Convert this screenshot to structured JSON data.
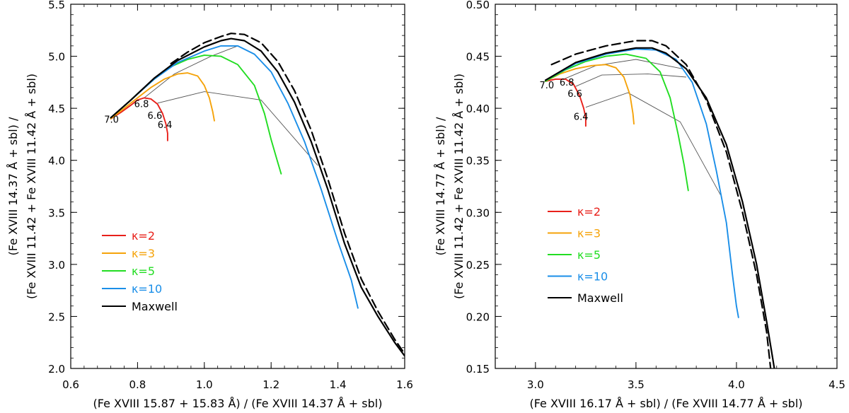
{
  "chart_data": [
    {
      "type": "line",
      "xlabel": "(Fe XVIII 15.87 + 15.83 Å) / (Fe XVIII 14.37 Å + sbl)",
      "ylabel_line1": "(Fe XVIII 14.37 Å + sbl) /",
      "ylabel_line2": "(Fe XVIII 11.42 + Fe XVIII 11.42 Å + sbl)",
      "xlim": [
        0.6,
        1.6
      ],
      "ylim": [
        2.0,
        5.5
      ],
      "xticks": [
        "0.6",
        "0.8",
        "1.0",
        "1.2",
        "1.4",
        "1.6"
      ],
      "yticks": [
        "2.0",
        "2.5",
        "3.0",
        "3.5",
        "4.0",
        "4.5",
        "5.0",
        "5.5"
      ],
      "legend_position": "lower-left",
      "legend": [
        {
          "label": "κ=2",
          "color": "#e8201a"
        },
        {
          "label": "κ=3",
          "color": "#f5a30a"
        },
        {
          "label": "κ=5",
          "color": "#22dd22"
        },
        {
          "label": "κ=10",
          "color": "#1a8ee8"
        },
        {
          "label": "Maxwell",
          "color": "#000000"
        }
      ],
      "series": [
        {
          "name": "κ=2",
          "color": "#e8201a",
          "style": "solid",
          "points": [
            [
              0.72,
              4.4
            ],
            [
              0.75,
              4.46
            ],
            [
              0.78,
              4.53
            ],
            [
              0.8,
              4.58
            ],
            [
              0.82,
              4.6
            ],
            [
              0.84,
              4.59
            ],
            [
              0.86,
              4.54
            ],
            [
              0.875,
              4.45
            ],
            [
              0.885,
              4.35
            ],
            [
              0.89,
              4.26
            ],
            [
              0.89,
              4.19
            ]
          ]
        },
        {
          "name": "κ=3",
          "color": "#f5a30a",
          "style": "solid",
          "points": [
            [
              0.72,
              4.4
            ],
            [
              0.76,
              4.5
            ],
            [
              0.8,
              4.6
            ],
            [
              0.84,
              4.7
            ],
            [
              0.88,
              4.78
            ],
            [
              0.92,
              4.83
            ],
            [
              0.95,
              4.84
            ],
            [
              0.98,
              4.81
            ],
            [
              1.0,
              4.72
            ],
            [
              1.015,
              4.6
            ],
            [
              1.025,
              4.47
            ],
            [
              1.03,
              4.38
            ]
          ]
        },
        {
          "name": "κ=5",
          "color": "#22dd22",
          "style": "solid",
          "points": [
            [
              0.72,
              4.41
            ],
            [
              0.76,
              4.52
            ],
            [
              0.8,
              4.64
            ],
            [
              0.85,
              4.78
            ],
            [
              0.9,
              4.9
            ],
            [
              0.95,
              4.97
            ],
            [
              1.0,
              5.01
            ],
            [
              1.05,
              5.0
            ],
            [
              1.1,
              4.92
            ],
            [
              1.15,
              4.72
            ],
            [
              1.18,
              4.45
            ],
            [
              1.2,
              4.2
            ],
            [
              1.22,
              3.98
            ],
            [
              1.23,
              3.87
            ]
          ]
        },
        {
          "name": "κ=10",
          "color": "#1a8ee8",
          "style": "solid",
          "points": [
            [
              0.72,
              4.41
            ],
            [
              0.78,
              4.58
            ],
            [
              0.85,
              4.78
            ],
            [
              0.92,
              4.94
            ],
            [
              1.0,
              5.05
            ],
            [
              1.05,
              5.1
            ],
            [
              1.1,
              5.1
            ],
            [
              1.15,
              5.02
            ],
            [
              1.2,
              4.85
            ],
            [
              1.25,
              4.55
            ],
            [
              1.3,
              4.18
            ],
            [
              1.35,
              3.72
            ],
            [
              1.4,
              3.22
            ],
            [
              1.44,
              2.85
            ],
            [
              1.46,
              2.58
            ]
          ]
        },
        {
          "name": "Maxwell",
          "color": "#000000",
          "style": "solid",
          "points": [
            [
              0.72,
              4.41
            ],
            [
              0.78,
              4.58
            ],
            [
              0.85,
              4.79
            ],
            [
              0.92,
              4.96
            ],
            [
              1.0,
              5.09
            ],
            [
              1.05,
              5.15
            ],
            [
              1.08,
              5.17
            ],
            [
              1.12,
              5.15
            ],
            [
              1.17,
              5.05
            ],
            [
              1.22,
              4.85
            ],
            [
              1.27,
              4.56
            ],
            [
              1.32,
              4.18
            ],
            [
              1.37,
              3.72
            ],
            [
              1.42,
              3.2
            ],
            [
              1.47,
              2.78
            ],
            [
              1.52,
              2.5
            ],
            [
              1.57,
              2.25
            ],
            [
              1.6,
              2.12
            ]
          ]
        },
        {
          "name": "Maxwell (dashed)",
          "color": "#000000",
          "style": "dashed",
          "points": [
            [
              0.9,
              4.93
            ],
            [
              0.95,
              5.04
            ],
            [
              1.0,
              5.13
            ],
            [
              1.05,
              5.19
            ],
            [
              1.08,
              5.22
            ],
            [
              1.12,
              5.21
            ],
            [
              1.17,
              5.13
            ],
            [
              1.22,
              4.95
            ],
            [
              1.27,
              4.67
            ],
            [
              1.32,
              4.29
            ],
            [
              1.37,
              3.82
            ],
            [
              1.42,
              3.3
            ],
            [
              1.47,
              2.86
            ],
            [
              1.52,
              2.55
            ],
            [
              1.57,
              2.28
            ],
            [
              1.6,
              2.14
            ]
          ]
        }
      ],
      "isotherm_lines": [
        [
          [
            0.82,
            4.6
          ],
          [
            0.91,
            4.83
          ],
          [
            1.02,
            5.0
          ],
          [
            1.1,
            5.1
          ]
        ],
        [
          [
            0.86,
            4.55
          ],
          [
            1.0,
            4.66
          ],
          [
            1.17,
            4.58
          ],
          [
            1.34,
            3.95
          ]
        ]
      ],
      "temperature_labels": [
        {
          "text": "7.0",
          "x": 0.7,
          "y": 4.36
        },
        {
          "text": "6.8",
          "x": 0.79,
          "y": 4.51
        },
        {
          "text": "6.6",
          "x": 0.83,
          "y": 4.4
        },
        {
          "text": "6.4",
          "x": 0.86,
          "y": 4.31
        }
      ]
    },
    {
      "type": "line",
      "xlabel": "(Fe XVIII 16.17 Å + sbl) / (Fe XVIII 14.77 Å + sbl)",
      "ylabel_line1": "(Fe XVIII 14.77 Å + sbl) /",
      "ylabel_line2": "(Fe XVIII 11.42 + Fe XVIII 11.42 Å + sbl)",
      "xlim": [
        2.8,
        4.5
      ],
      "ylim": [
        0.15,
        0.5
      ],
      "xticks": [
        "3.0",
        "3.5",
        "4.0",
        "4.5"
      ],
      "yticks": [
        "0.15",
        "0.20",
        "0.25",
        "0.30",
        "0.35",
        "0.40",
        "0.45",
        "0.50"
      ],
      "legend_position": "middle-left",
      "legend": [
        {
          "label": "κ=2",
          "color": "#e8201a"
        },
        {
          "label": "κ=3",
          "color": "#f5a30a"
        },
        {
          "label": "κ=5",
          "color": "#22dd22"
        },
        {
          "label": "κ=10",
          "color": "#1a8ee8"
        },
        {
          "label": "Maxwell",
          "color": "#000000"
        }
      ],
      "series": [
        {
          "name": "κ=2",
          "color": "#e8201a",
          "style": "solid",
          "points": [
            [
              3.05,
              0.426
            ],
            [
              3.1,
              0.428
            ],
            [
              3.15,
              0.428
            ],
            [
              3.19,
              0.423
            ],
            [
              3.22,
              0.412
            ],
            [
              3.24,
              0.4
            ],
            [
              3.25,
              0.391
            ],
            [
              3.25,
              0.383
            ]
          ]
        },
        {
          "name": "κ=3",
          "color": "#f5a30a",
          "style": "solid",
          "points": [
            [
              3.05,
              0.426
            ],
            [
              3.12,
              0.433
            ],
            [
              3.2,
              0.438
            ],
            [
              3.28,
              0.441
            ],
            [
              3.35,
              0.442
            ],
            [
              3.4,
              0.439
            ],
            [
              3.44,
              0.43
            ],
            [
              3.47,
              0.413
            ],
            [
              3.485,
              0.395
            ],
            [
              3.49,
              0.385
            ]
          ]
        },
        {
          "name": "κ=5",
          "color": "#22dd22",
          "style": "solid",
          "points": [
            [
              3.05,
              0.426
            ],
            [
              3.15,
              0.437
            ],
            [
              3.25,
              0.445
            ],
            [
              3.35,
              0.45
            ],
            [
              3.45,
              0.452
            ],
            [
              3.55,
              0.448
            ],
            [
              3.62,
              0.435
            ],
            [
              3.67,
              0.41
            ],
            [
              3.71,
              0.375
            ],
            [
              3.74,
              0.345
            ],
            [
              3.76,
              0.321
            ]
          ]
        },
        {
          "name": "κ=10",
          "color": "#1a8ee8",
          "style": "solid",
          "points": [
            [
              3.05,
              0.427
            ],
            [
              3.2,
              0.443
            ],
            [
              3.35,
              0.452
            ],
            [
              3.5,
              0.457
            ],
            [
              3.6,
              0.456
            ],
            [
              3.7,
              0.447
            ],
            [
              3.78,
              0.425
            ],
            [
              3.85,
              0.385
            ],
            [
              3.9,
              0.34
            ],
            [
              3.95,
              0.29
            ],
            [
              3.98,
              0.24
            ],
            [
              4.0,
              0.21
            ],
            [
              4.01,
              0.199
            ]
          ]
        },
        {
          "name": "Maxwell",
          "color": "#000000",
          "style": "solid",
          "points": [
            [
              3.05,
              0.427
            ],
            [
              3.2,
              0.444
            ],
            [
              3.35,
              0.453
            ],
            [
              3.5,
              0.458
            ],
            [
              3.58,
              0.458
            ],
            [
              3.65,
              0.453
            ],
            [
              3.75,
              0.438
            ],
            [
              3.85,
              0.41
            ],
            [
              3.95,
              0.365
            ],
            [
              4.03,
              0.31
            ],
            [
              4.1,
              0.25
            ],
            [
              4.15,
              0.195
            ],
            [
              4.18,
              0.16
            ],
            [
              4.19,
              0.148
            ]
          ]
        },
        {
          "name": "Maxwell (dashed)",
          "color": "#000000",
          "style": "dashed",
          "points": [
            [
              3.08,
              0.442
            ],
            [
              3.2,
              0.452
            ],
            [
              3.35,
              0.46
            ],
            [
              3.5,
              0.465
            ],
            [
              3.58,
              0.465
            ],
            [
              3.65,
              0.46
            ],
            [
              3.75,
              0.442
            ],
            [
              3.85,
              0.408
            ],
            [
              3.95,
              0.358
            ],
            [
              4.03,
              0.3
            ],
            [
              4.1,
              0.24
            ],
            [
              4.15,
              0.185
            ],
            [
              4.17,
              0.15
            ]
          ]
        }
      ],
      "isotherm_lines": [
        [
          [
            3.14,
            0.428
          ],
          [
            3.3,
            0.441
          ],
          [
            3.5,
            0.447
          ],
          [
            3.73,
            0.438
          ]
        ],
        [
          [
            3.2,
            0.421
          ],
          [
            3.33,
            0.432
          ],
          [
            3.56,
            0.433
          ],
          [
            3.75,
            0.43
          ]
        ],
        [
          [
            3.25,
            0.401
          ],
          [
            3.46,
            0.415
          ],
          [
            3.72,
            0.387
          ],
          [
            3.92,
            0.317
          ]
        ]
      ],
      "temperature_labels": [
        {
          "text": "7.0",
          "x": 3.02,
          "y": 0.419
        },
        {
          "text": "6.8",
          "x": 3.12,
          "y": 0.422
        },
        {
          "text": "6.6",
          "x": 3.16,
          "y": 0.411
        },
        {
          "text": "6.4",
          "x": 3.19,
          "y": 0.389
        }
      ]
    }
  ]
}
